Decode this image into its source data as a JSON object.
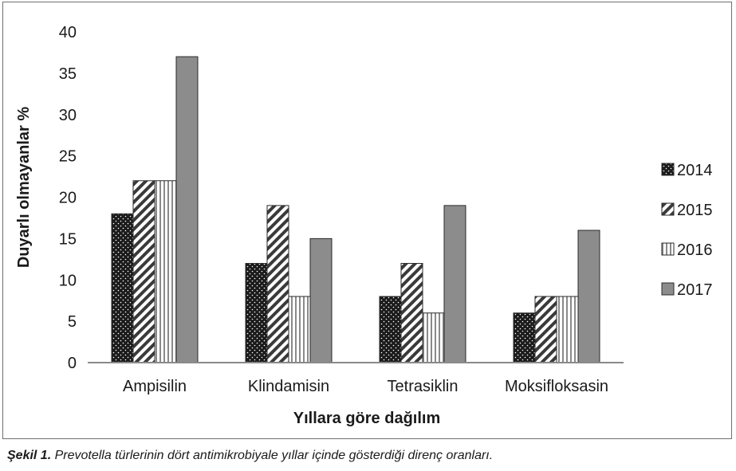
{
  "chart_data": {
    "type": "bar",
    "title": "",
    "xlabel": "Yıllara göre dağılım",
    "ylabel": "Duyarlı olmayanlar %",
    "ylim": [
      0,
      40
    ],
    "yticks": [
      "0",
      "5",
      "10",
      "15",
      "20",
      "25",
      "30",
      "35",
      "40"
    ],
    "grid": false,
    "legend_position": "right",
    "categories": [
      "Ampisilin",
      "Klindamisin",
      "Tetrasiklin",
      "Moksifloksasin"
    ],
    "series": [
      {
        "name": "2014",
        "values": [
          18,
          12,
          8,
          6
        ],
        "pattern": "dots",
        "color": "#1b1b1b"
      },
      {
        "name": "2015",
        "values": [
          22,
          19,
          12,
          8
        ],
        "pattern": "diagonal-stripes",
        "color": "#4a4a4a"
      },
      {
        "name": "2016",
        "values": [
          22,
          8,
          6,
          8
        ],
        "pattern": "vertical-stripes",
        "color": "#9a9a9a"
      },
      {
        "name": "2017",
        "values": [
          37,
          15,
          19,
          16
        ],
        "pattern": "solid",
        "color": "#8c8c8c"
      }
    ]
  },
  "caption": {
    "label": "Şekil 1.",
    "text": " Prevotella türlerinin dört antimikrobiyale yıllar içinde gösterdiği direnç oranları."
  }
}
